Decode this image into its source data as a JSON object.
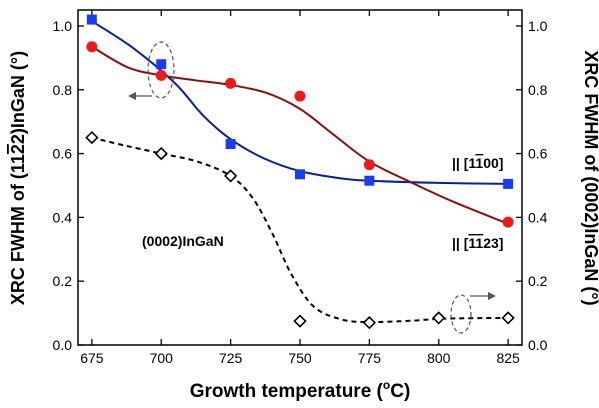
{
  "chart_data": {
    "type": "scatter",
    "xlabel_main": "Growth temperature (",
    "xlabel_sup": "o",
    "xlabel_end": "C)",
    "ylabel_left": "XRC FWHM of (11",
    "ylabel_left_overline": "2",
    "ylabel_left_end": "2)InGaN (°)",
    "ylabel_right": "XRC FWHM of (0002)InGaN (°)",
    "xlim": [
      670,
      830
    ],
    "ylim": [
      0.0,
      1.05
    ],
    "x_ticks": [
      "675",
      "700",
      "725",
      "750",
      "775",
      "800",
      "825"
    ],
    "y_ticks": [
      "0.0",
      "0.2",
      "0.4",
      "0.6",
      "0.8",
      "1.0"
    ],
    "series": [
      {
        "name": "|| [1100]",
        "label_prefix": "|| [1",
        "label_overline": "1",
        "label_suffix": "00]",
        "color": "#1a3cf0",
        "line_color": "#0a1fa0",
        "marker": "square",
        "axis": "left",
        "x": [
          675,
          700,
          725,
          750,
          775,
          825
        ],
        "y": [
          1.02,
          0.88,
          0.63,
          0.535,
          0.515,
          0.505
        ],
        "curve": [
          [
            675,
            1.015
          ],
          [
            690,
            0.93
          ],
          [
            705,
            0.82
          ],
          [
            715,
            0.72
          ],
          [
            725,
            0.645
          ],
          [
            737,
            0.585
          ],
          [
            750,
            0.545
          ],
          [
            765,
            0.522
          ],
          [
            775,
            0.515
          ],
          [
            800,
            0.508
          ],
          [
            825,
            0.505
          ]
        ]
      },
      {
        "name": "|| [1123]",
        "label_prefix": "|| [",
        "label_overline": "11",
        "label_suffix": "23]",
        "color": "#f01818",
        "line_color": "#8c0e0e",
        "marker": "circle",
        "axis": "left",
        "x": [
          675,
          700,
          725,
          750,
          775,
          825
        ],
        "y": [
          0.935,
          0.845,
          0.82,
          0.78,
          0.565,
          0.385
        ],
        "curve": [
          [
            675,
            0.935
          ],
          [
            688,
            0.87
          ],
          [
            700,
            0.845
          ],
          [
            712,
            0.83
          ],
          [
            725,
            0.815
          ],
          [
            738,
            0.79
          ],
          [
            750,
            0.74
          ],
          [
            762,
            0.66
          ],
          [
            775,
            0.575
          ],
          [
            790,
            0.51
          ],
          [
            805,
            0.45
          ],
          [
            825,
            0.38
          ]
        ]
      },
      {
        "name": "(0002)InGaN",
        "color": "#000000",
        "marker": "diamond-open",
        "axis": "right",
        "x": [
          675,
          700,
          725,
          750,
          775,
          800,
          825
        ],
        "y": [
          0.65,
          0.6,
          0.53,
          0.075,
          0.07,
          0.085,
          0.085
        ],
        "curve": [
          [
            675,
            0.65
          ],
          [
            687,
            0.625
          ],
          [
            700,
            0.6
          ],
          [
            713,
            0.575
          ],
          [
            725,
            0.53
          ],
          [
            733,
            0.46
          ],
          [
            740,
            0.35
          ],
          [
            747,
            0.22
          ],
          [
            755,
            0.12
          ],
          [
            765,
            0.08
          ],
          [
            775,
            0.072
          ],
          [
            790,
            0.076
          ],
          [
            800,
            0.082
          ],
          [
            812,
            0.084
          ],
          [
            825,
            0.085
          ]
        ]
      }
    ],
    "annotations": {
      "ingan_label": "(0002)InGaN"
    },
    "grid": false,
    "legend": "inline-labels"
  }
}
